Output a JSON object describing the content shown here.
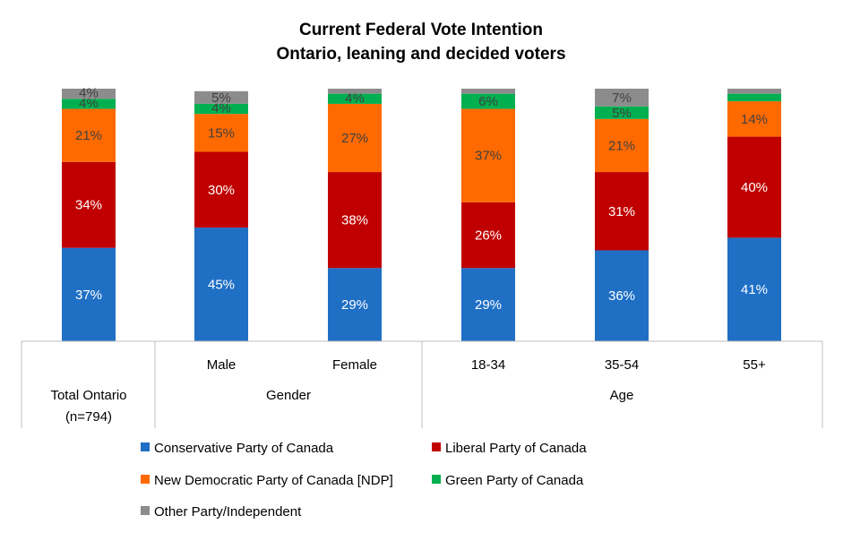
{
  "chart_data": {
    "type": "bar",
    "stacked": true,
    "title": [
      "Current Federal Vote Intention",
      "Ontario, leaning and decided voters"
    ],
    "categories": [
      "",
      "Male",
      "Female",
      "18-34",
      "35-54",
      "55+"
    ],
    "groups": [
      {
        "label": "Total Ontario\n(n=794)",
        "categories": [
          ""
        ]
      },
      {
        "label": "Gender",
        "categories": [
          "Male",
          "Female"
        ]
      },
      {
        "label": "Age",
        "categories": [
          "18-34",
          "35-54",
          "55+"
        ]
      }
    ],
    "group_labels": [
      "Total Ontario",
      "(n=794)",
      "Gender",
      "Age"
    ],
    "ylim": [
      0,
      100
    ],
    "grid": false,
    "legend_position": "bottom",
    "series": [
      {
        "name": "Conservative Party of Canada",
        "color": "#1f6fc5",
        "values": [
          37,
          45,
          29,
          29,
          36,
          41
        ],
        "labels": [
          "37%",
          "45%",
          "29%",
          "29%",
          "36%",
          "41%"
        ]
      },
      {
        "name": "Liberal Party of Canada",
        "color": "#c00000",
        "values": [
          34,
          30,
          38,
          26,
          31,
          40
        ],
        "labels": [
          "34%",
          "30%",
          "38%",
          "26%",
          "31%",
          "40%"
        ]
      },
      {
        "name": "New Democratic Party of Canada [NDP]",
        "color": "#ff6a00",
        "values": [
          21,
          15,
          27,
          37,
          21,
          14
        ],
        "labels": [
          "21%",
          "15%",
          "27%",
          "37%",
          "21%",
          "14%"
        ]
      },
      {
        "name": "Green Party of Canada",
        "color": "#00b050",
        "values": [
          4,
          4,
          4,
          6,
          5,
          3
        ],
        "labels": [
          "4%",
          "4%",
          "4%",
          "6%",
          "5%",
          ""
        ]
      },
      {
        "name": "Other Party/Independent",
        "color": "#8c8c8c",
        "values": [
          4,
          5,
          2,
          2,
          7,
          2
        ],
        "labels": [
          "4%",
          "5%",
          "",
          "",
          "7%",
          ""
        ]
      }
    ]
  }
}
